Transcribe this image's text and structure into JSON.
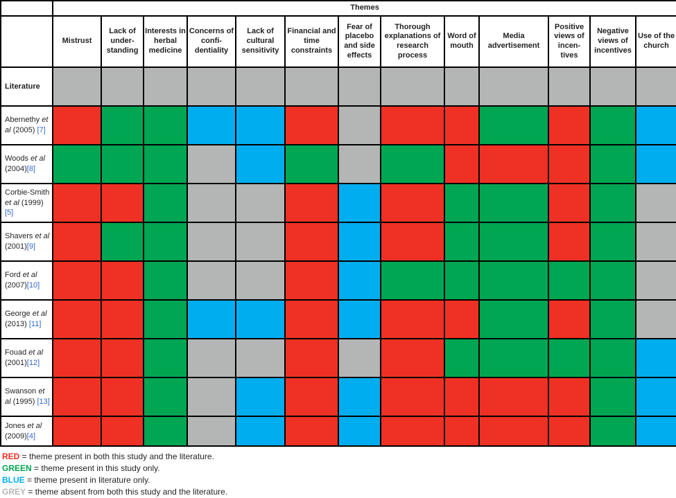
{
  "chart_data": {
    "type": "heatmap",
    "header": "Themes",
    "columns": [
      "Mistrust",
      "Lack of under-standing",
      "Interests in herbal medicine",
      "Concerns of confi-dentiality",
      "Lack of cultural sensitivity",
      "Financial and time constraints",
      "Fear of placebo and side effects",
      "Thorough explanations of research process",
      "Word of mouth",
      "Media advertisement",
      "Positive views of incen-tives",
      "Negative views of incentives",
      "Use of the church"
    ],
    "rows": [
      {
        "label_parts": [
          {
            "text": "Literature",
            "style": "bold"
          }
        ],
        "values": [
          "grey",
          "grey",
          "grey",
          "grey",
          "grey",
          "grey",
          "grey",
          "grey",
          "grey",
          "grey",
          "grey",
          "grey",
          "grey"
        ]
      },
      {
        "label_parts": [
          {
            "text": "Abernethy ",
            "style": "normal"
          },
          {
            "text": "et al",
            "style": "italic"
          },
          {
            "text": " (2005) ",
            "style": "normal"
          },
          {
            "text": "[7]",
            "style": "link"
          }
        ],
        "values": [
          "red",
          "green",
          "green",
          "blue",
          "blue",
          "red",
          "grey",
          "red",
          "red",
          "green",
          "red",
          "green",
          "blue"
        ]
      },
      {
        "label_parts": [
          {
            "text": "Woods ",
            "style": "normal"
          },
          {
            "text": "et al",
            "style": "italic"
          },
          {
            "text": " (2004)",
            "style": "normal"
          },
          {
            "text": "[8]",
            "style": "link"
          }
        ],
        "values": [
          "green",
          "green",
          "green",
          "grey",
          "blue",
          "green",
          "grey",
          "green",
          "red",
          "red",
          "red",
          "green",
          "blue"
        ]
      },
      {
        "label_parts": [
          {
            "text": "Corbie-Smith ",
            "style": "normal"
          },
          {
            "text": "et al",
            "style": "italic"
          },
          {
            "text": " (1999)",
            "style": "normal"
          },
          {
            "text": "[5]",
            "style": "link"
          }
        ],
        "values": [
          "red",
          "red",
          "green",
          "grey",
          "grey",
          "red",
          "blue",
          "red",
          "green",
          "green",
          "red",
          "green",
          "grey"
        ]
      },
      {
        "label_parts": [
          {
            "text": "Shavers ",
            "style": "normal"
          },
          {
            "text": "et al",
            "style": "italic"
          },
          {
            "text": " (2001)",
            "style": "normal"
          },
          {
            "text": "[9]",
            "style": "link"
          }
        ],
        "values": [
          "red",
          "green",
          "green",
          "grey",
          "grey",
          "red",
          "blue",
          "red",
          "green",
          "green",
          "red",
          "green",
          "grey"
        ]
      },
      {
        "label_parts": [
          {
            "text": "Ford ",
            "style": "normal"
          },
          {
            "text": "et al",
            "style": "italic"
          },
          {
            "text": " (2007)",
            "style": "normal"
          },
          {
            "text": "[10]",
            "style": "link"
          }
        ],
        "values": [
          "red",
          "red",
          "green",
          "grey",
          "grey",
          "red",
          "blue",
          "green",
          "green",
          "green",
          "green",
          "green",
          "grey"
        ]
      },
      {
        "label_parts": [
          {
            "text": "George ",
            "style": "normal"
          },
          {
            "text": "et al",
            "style": "italic"
          },
          {
            "text": " (2013) ",
            "style": "normal"
          },
          {
            "text": "[11]",
            "style": "link"
          }
        ],
        "values": [
          "red",
          "red",
          "green",
          "blue",
          "blue",
          "red",
          "blue",
          "red",
          "red",
          "green",
          "red",
          "green",
          "grey"
        ]
      },
      {
        "label_parts": [
          {
            "text": "Fouad ",
            "style": "normal"
          },
          {
            "text": "et al",
            "style": "italic"
          },
          {
            "text": " (2001)",
            "style": "normal"
          },
          {
            "text": "[12]",
            "style": "link"
          }
        ],
        "values": [
          "red",
          "red",
          "green",
          "grey",
          "grey",
          "red",
          "grey",
          "red",
          "green",
          "green",
          "green",
          "green",
          "blue"
        ]
      },
      {
        "label_parts": [
          {
            "text": "Swanson ",
            "style": "normal"
          },
          {
            "text": "et al",
            "style": "italic"
          },
          {
            "text": " (1995) ",
            "style": "normal"
          },
          {
            "text": "[13]",
            "style": "link"
          }
        ],
        "values": [
          "red",
          "red",
          "green",
          "grey",
          "blue",
          "red",
          "blue",
          "red",
          "red",
          "red",
          "red",
          "green",
          "blue"
        ]
      },
      {
        "label_parts": [
          {
            "text": "Jones ",
            "style": "normal"
          },
          {
            "text": "et al",
            "style": "italic"
          },
          {
            "text": " (2009)",
            "style": "normal"
          },
          {
            "text": "[4]",
            "style": "link"
          }
        ],
        "values": [
          "red",
          "red",
          "green",
          "grey",
          "blue",
          "red",
          "blue",
          "red",
          "red",
          "red",
          "red",
          "green",
          "blue"
        ]
      }
    ],
    "legend": [
      {
        "term": "RED",
        "value": "red",
        "text": " = theme present in both this study and the literature."
      },
      {
        "term": "GREEN",
        "value": "green",
        "text": " = theme present in this study only."
      },
      {
        "term": "BLUE",
        "value": "blue",
        "text": " = theme present in literature only."
      },
      {
        "term": "GREY",
        "value": "grey",
        "text": " = theme absent from both this study and the literature."
      }
    ],
    "colors": {
      "red": "#EE3124",
      "green": "#00A651",
      "blue": "#00AEEF",
      "grey": "#B4B6B5",
      "link": "#3366CC"
    }
  }
}
